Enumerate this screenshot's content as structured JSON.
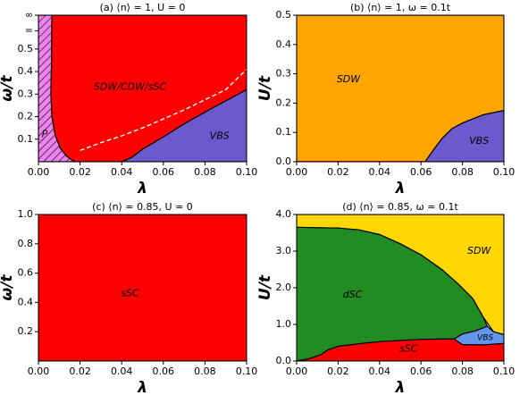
{
  "figure": {
    "background": "#ffffff"
  },
  "chart_data": [
    {
      "type": "area",
      "panel": "a",
      "title": "(a) ⟨n⟩ = 1, U = 0",
      "xlabel": "λ",
      "ylabel": "ω/t",
      "xlim": [
        0.0,
        0.1
      ],
      "ylim": [
        0.0,
        0.65
      ],
      "xticks": [
        0.0,
        0.02,
        0.04,
        0.06,
        0.08,
        0.1
      ],
      "xtick_labels": [
        "0.00",
        "0.02",
        "0.04",
        "0.06",
        "0.08",
        "0.10"
      ],
      "yticks": [
        0.1,
        0.2,
        0.3,
        0.4,
        0.5
      ],
      "ytick_labels": [
        "0.1",
        "0.2",
        "0.3",
        "0.4",
        "0.5"
      ],
      "extra_ytick_labels": [
        {
          "label": "∞",
          "y": 0.65
        },
        {
          "label": "=",
          "y": 0.58
        }
      ],
      "regions": [
        {
          "label": "P",
          "color": "#ee82ee",
          "hatch": true,
          "polygon": [
            [
              0.0,
              0.0
            ],
            [
              0.0,
              0.65
            ],
            [
              0.0065,
              0.65
            ],
            [
              0.0063,
              0.45
            ],
            [
              0.006,
              0.3
            ],
            [
              0.0065,
              0.2
            ],
            [
              0.008,
              0.12
            ],
            [
              0.0105,
              0.06
            ],
            [
              0.0135,
              0.025
            ],
            [
              0.016,
              0.008
            ],
            [
              0.018,
              0.0
            ]
          ],
          "label_at": [
            0.003,
            0.12
          ]
        },
        {
          "label": "SDW/CDW/sSC",
          "color": "#ff0000",
          "polygon": [
            [
              0.0065,
              0.65
            ],
            [
              0.1,
              0.65
            ],
            [
              0.1,
              0.32
            ],
            [
              0.092,
              0.28
            ],
            [
              0.08,
              0.22
            ],
            [
              0.07,
              0.168
            ],
            [
              0.06,
              0.11
            ],
            [
              0.05,
              0.055
            ],
            [
              0.045,
              0.02
            ],
            [
              0.04,
              0.0
            ],
            [
              0.018,
              0.0
            ],
            [
              0.016,
              0.008
            ],
            [
              0.0135,
              0.025
            ],
            [
              0.0105,
              0.06
            ],
            [
              0.008,
              0.12
            ],
            [
              0.0065,
              0.2
            ],
            [
              0.006,
              0.3
            ],
            [
              0.0063,
              0.45
            ]
          ],
          "label_at": [
            0.044,
            0.33
          ]
        },
        {
          "label": "VBS",
          "color": "#6a5acd",
          "polygon": [
            [
              0.04,
              0.0
            ],
            [
              0.045,
              0.02
            ],
            [
              0.05,
              0.055
            ],
            [
              0.06,
              0.11
            ],
            [
              0.07,
              0.168
            ],
            [
              0.08,
              0.22
            ],
            [
              0.092,
              0.28
            ],
            [
              0.1,
              0.32
            ],
            [
              0.1,
              0.0
            ]
          ],
          "label_at": [
            0.087,
            0.112
          ]
        }
      ],
      "dashed_line": {
        "color": "#ffffff",
        "points": [
          [
            0.02,
            0.05
          ],
          [
            0.03,
            0.085
          ],
          [
            0.04,
            0.115
          ],
          [
            0.05,
            0.15
          ],
          [
            0.06,
            0.19
          ],
          [
            0.07,
            0.23
          ],
          [
            0.08,
            0.275
          ],
          [
            0.09,
            0.32
          ],
          [
            0.1,
            0.41
          ]
        ]
      }
    },
    {
      "type": "area",
      "panel": "b",
      "title": "(b) ⟨n⟩ = 1, ω = 0.1t",
      "xlabel": "λ",
      "ylabel": "U/t",
      "xlim": [
        0.0,
        0.1
      ],
      "ylim": [
        0.0,
        0.5
      ],
      "xticks": [
        0.0,
        0.02,
        0.04,
        0.06,
        0.08,
        0.1
      ],
      "xtick_labels": [
        "0.00",
        "0.02",
        "0.04",
        "0.06",
        "0.08",
        "0.10"
      ],
      "yticks": [
        0.0,
        0.1,
        0.2,
        0.3,
        0.4,
        0.5
      ],
      "ytick_labels": [
        "0.0",
        "0.1",
        "0.2",
        "0.3",
        "0.4",
        "0.5"
      ],
      "regions": [
        {
          "label": "SDW",
          "color": "#ffa500",
          "polygon": [
            [
              0.0,
              0.0
            ],
            [
              0.0,
              0.5
            ],
            [
              0.1,
              0.5
            ],
            [
              0.1,
              0.175
            ],
            [
              0.09,
              0.16
            ],
            [
              0.08,
              0.132
            ],
            [
              0.075,
              0.113
            ],
            [
              0.07,
              0.078
            ],
            [
              0.066,
              0.04
            ],
            [
              0.063,
              0.01
            ],
            [
              0.062,
              0.0
            ]
          ],
          "label_at": [
            0.025,
            0.28
          ]
        },
        {
          "label": "VBS",
          "color": "#6a5acd",
          "polygon": [
            [
              0.062,
              0.0
            ],
            [
              0.063,
              0.01
            ],
            [
              0.066,
              0.04
            ],
            [
              0.07,
              0.078
            ],
            [
              0.075,
              0.113
            ],
            [
              0.08,
              0.132
            ],
            [
              0.09,
              0.16
            ],
            [
              0.1,
              0.175
            ],
            [
              0.1,
              0.0
            ]
          ],
          "label_at": [
            0.088,
            0.07
          ]
        }
      ],
      "boundary_line": {
        "color": "#ff0000",
        "points": [
          [
            0.0,
            0.0
          ],
          [
            0.062,
            0.0
          ]
        ]
      }
    },
    {
      "type": "area",
      "panel": "c",
      "title": "(c) ⟨n⟩ = 0.85, U = 0",
      "xlabel": "λ",
      "ylabel": "ω/t",
      "xlim": [
        0.0,
        0.1
      ],
      "ylim": [
        0.0,
        1.0
      ],
      "xticks": [
        0.0,
        0.02,
        0.04,
        0.06,
        0.08,
        0.1
      ],
      "xtick_labels": [
        "0.00",
        "0.02",
        "0.04",
        "0.06",
        "0.08",
        "0.10"
      ],
      "yticks": [
        0.2,
        0.4,
        0.6,
        0.8,
        1.0
      ],
      "ytick_labels": [
        "0.2",
        "0.4",
        "0.6",
        "0.8",
        "1.0"
      ],
      "regions": [
        {
          "label": "sSC",
          "color": "#ff0000",
          "polygon": [
            [
              0.0,
              0.0
            ],
            [
              0.0,
              1.0
            ],
            [
              0.1,
              1.0
            ],
            [
              0.1,
              0.0
            ]
          ],
          "label_at": [
            0.044,
            0.46
          ]
        }
      ]
    },
    {
      "type": "area",
      "panel": "d",
      "title": "(d) ⟨n⟩ = 0.85, ω = 0.1t",
      "xlabel": "λ",
      "ylabel": "U/t",
      "xlim": [
        0.0,
        0.1
      ],
      "ylim": [
        0.0,
        4.0
      ],
      "xticks": [
        0.0,
        0.02,
        0.04,
        0.06,
        0.08,
        0.1
      ],
      "xtick_labels": [
        "0.00",
        "0.02",
        "0.04",
        "0.06",
        "0.08",
        "0.10"
      ],
      "yticks": [
        0.0,
        1.0,
        2.0,
        3.0,
        4.0
      ],
      "ytick_labels": [
        "0.0",
        "1.0",
        "2.0",
        "3.0",
        "4.0"
      ],
      "regions": [
        {
          "label": "SDW",
          "color": "#ffd700",
          "polygon": [
            [
              0.0,
              4.0
            ],
            [
              0.1,
              4.0
            ],
            [
              0.1,
              0.72
            ],
            [
              0.095,
              0.8
            ],
            [
              0.09,
              1.2
            ],
            [
              0.085,
              1.7
            ],
            [
              0.078,
              2.1
            ],
            [
              0.07,
              2.5
            ],
            [
              0.06,
              2.9
            ],
            [
              0.05,
              3.2
            ],
            [
              0.04,
              3.45
            ],
            [
              0.03,
              3.58
            ],
            [
              0.02,
              3.63
            ],
            [
              0.01,
              3.64
            ],
            [
              0.0,
              3.65
            ]
          ],
          "label_at": [
            0.088,
            3.0
          ]
        },
        {
          "label": "dSC",
          "color": "#228b22",
          "polygon": [
            [
              0.0,
              3.65
            ],
            [
              0.01,
              3.64
            ],
            [
              0.02,
              3.63
            ],
            [
              0.03,
              3.58
            ],
            [
              0.04,
              3.45
            ],
            [
              0.05,
              3.2
            ],
            [
              0.06,
              2.9
            ],
            [
              0.07,
              2.5
            ],
            [
              0.078,
              2.1
            ],
            [
              0.085,
              1.7
            ],
            [
              0.09,
              1.2
            ],
            [
              0.092,
              0.95
            ],
            [
              0.086,
              0.82
            ],
            [
              0.08,
              0.74
            ],
            [
              0.076,
              0.6
            ],
            [
              0.07,
              0.6
            ],
            [
              0.06,
              0.59
            ],
            [
              0.05,
              0.56
            ],
            [
              0.04,
              0.53
            ],
            [
              0.03,
              0.47
            ],
            [
              0.02,
              0.4
            ],
            [
              0.015,
              0.3
            ],
            [
              0.012,
              0.18
            ],
            [
              0.008,
              0.1
            ],
            [
              0.005,
              0.05
            ],
            [
              0.0,
              0.0
            ]
          ],
          "label_at": [
            0.027,
            1.8
          ]
        },
        {
          "label": "VBS",
          "color": "#6495ed",
          "polygon": [
            [
              0.076,
              0.6
            ],
            [
              0.08,
              0.74
            ],
            [
              0.086,
              0.82
            ],
            [
              0.092,
              0.95
            ],
            [
              0.095,
              0.8
            ],
            [
              0.1,
              0.72
            ],
            [
              0.1,
              0.48
            ],
            [
              0.09,
              0.44
            ],
            [
              0.08,
              0.45
            ],
            [
              0.076,
              0.6
            ]
          ],
          "label_at": [
            0.091,
            0.64
          ]
        },
        {
          "label": "sSC",
          "color": "#ff0000",
          "polygon": [
            [
              0.0,
              0.0
            ],
            [
              0.005,
              0.05
            ],
            [
              0.008,
              0.1
            ],
            [
              0.012,
              0.18
            ],
            [
              0.015,
              0.3
            ],
            [
              0.02,
              0.4
            ],
            [
              0.03,
              0.47
            ],
            [
              0.04,
              0.53
            ],
            [
              0.05,
              0.56
            ],
            [
              0.06,
              0.59
            ],
            [
              0.07,
              0.6
            ],
            [
              0.076,
              0.6
            ],
            [
              0.08,
              0.45
            ],
            [
              0.09,
              0.44
            ],
            [
              0.1,
              0.48
            ],
            [
              0.1,
              0.0
            ]
          ],
          "label_at": [
            0.054,
            0.33
          ]
        }
      ]
    }
  ]
}
